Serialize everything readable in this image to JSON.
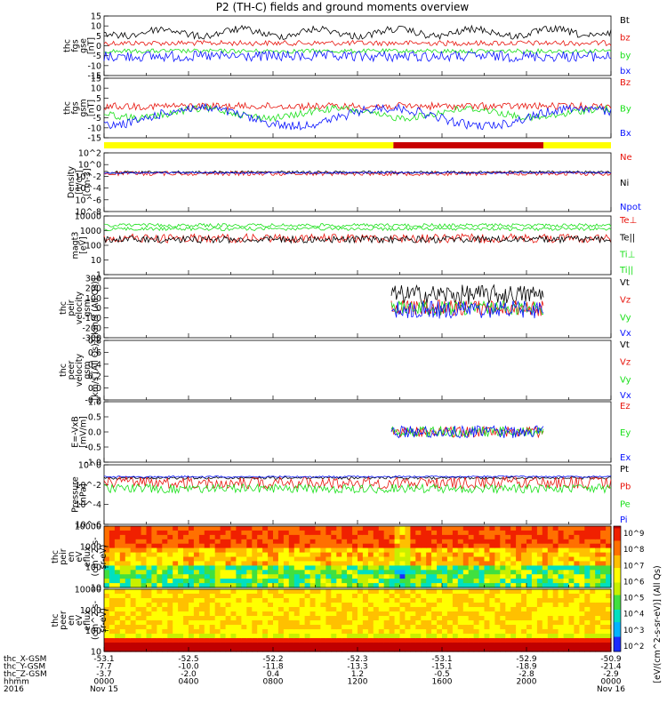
{
  "title": "P2 (TH-C) fields and ground moments overview",
  "colors": {
    "black": "#000000",
    "red": "#e8140c",
    "green": "#18e018",
    "blue": "#0a14ff",
    "yellow": "#ffff00",
    "darkred": "#c80000"
  },
  "chart_data": [
    {
      "type": "line",
      "name": "fgs",
      "ylabel": [
        "thc",
        "fgs",
        "gse",
        "[nT]"
      ],
      "yticks": [
        "15",
        "10",
        "5",
        "0",
        "-5",
        "-10",
        "-15"
      ],
      "ylim": [
        -15,
        15
      ],
      "series": [
        {
          "name": "Bt",
          "color": "black"
        },
        {
          "name": "bz",
          "color": "red"
        },
        {
          "name": "by",
          "color": "green"
        },
        {
          "name": "bx",
          "color": "blue"
        }
      ]
    },
    {
      "type": "line",
      "name": "fgs_gsm",
      "ylabel": [
        "thc",
        "fgs",
        "gsm",
        "[nT]"
      ],
      "yticks": [
        "15",
        "10",
        "5",
        "0",
        "-5",
        "-10",
        "-15"
      ],
      "ylim": [
        -15,
        15
      ],
      "series": [
        {
          "name": "Bz",
          "color": "red"
        },
        {
          "name": "By",
          "color": "green"
        },
        {
          "name": "Bx",
          "color": "blue"
        }
      ]
    },
    {
      "type": "bar",
      "name": "mode_bar",
      "segments": [
        {
          "from": 0,
          "to": 13.7,
          "color": "yellow"
        },
        {
          "from": 13.7,
          "to": 20.8,
          "color": "darkred"
        },
        {
          "from": 20.8,
          "to": 24,
          "color": "yellow"
        }
      ]
    },
    {
      "type": "line",
      "name": "density",
      "ylabel": [
        "Density",
        "[1/cc]",
        "[cm-3]"
      ],
      "yticks": [
        "10^2",
        "10^0",
        "10^-2",
        "10^-4",
        "10^-6",
        "10^-8"
      ],
      "log": true,
      "series": [
        {
          "name": "Ne",
          "color": "red"
        },
        {
          "name": "Ni",
          "color": "black"
        },
        {
          "name": "Npot",
          "color": "blue"
        }
      ]
    },
    {
      "type": "line",
      "name": "temperature",
      "ylabel": [
        "magt3",
        "[eV]"
      ],
      "yticks": [
        "10000",
        "1000",
        "100",
        "10",
        "1"
      ],
      "log": true,
      "series": [
        {
          "name": "Te⊥",
          "color": "red"
        },
        {
          "name": "Te||",
          "color": "black"
        },
        {
          "name": "Ti⊥",
          "color": "green"
        },
        {
          "name": "Ti||",
          "color": "green"
        }
      ]
    },
    {
      "type": "line",
      "name": "peir_velocity",
      "ylabel": [
        "thc",
        "peir",
        "velocity",
        "gsm",
        "[km/s (All Qs)]"
      ],
      "yticks": [
        "300",
        "200",
        "100",
        "0",
        "-100",
        "-200",
        "-300"
      ],
      "ylim": [
        -300,
        300
      ],
      "series": [
        {
          "name": "Vt",
          "color": "black"
        },
        {
          "name": "Vz",
          "color": "red"
        },
        {
          "name": "Vy",
          "color": "green"
        },
        {
          "name": "Vx",
          "color": "blue"
        }
      ]
    },
    {
      "type": "line",
      "name": "peer_velocity",
      "ylabel": [
        "thc",
        "peer",
        "velocity",
        "gsm",
        "[km/s (All Qs)]"
      ],
      "yticks": [
        "0.8",
        "0.6",
        "0.4",
        "0.2",
        "0.0",
        "-0.2"
      ],
      "ylim": [
        -0.2,
        0.8
      ],
      "series": [
        {
          "name": "Vt",
          "color": "black"
        },
        {
          "name": "Vz",
          "color": "red"
        },
        {
          "name": "Vy",
          "color": "green"
        },
        {
          "name": "Vx",
          "color": "blue"
        }
      ]
    },
    {
      "type": "line",
      "name": "efield",
      "ylabel": [
        "E=-VxB",
        "[mV/m]"
      ],
      "yticks": [
        "1.0",
        "0.5",
        "0.0",
        "-0.5",
        "-1.0"
      ],
      "ylim": [
        -1,
        1
      ],
      "series": [
        {
          "name": "Ez",
          "color": "red"
        },
        {
          "name": "Ey",
          "color": "green"
        },
        {
          "name": "Ex",
          "color": "blue"
        }
      ]
    },
    {
      "type": "line",
      "name": "pressure",
      "ylabel": [
        "Pressure",
        "[nPa]"
      ],
      "yticks": [
        "10^0",
        "10^-2",
        "10^-4",
        "10^-6"
      ],
      "log": true,
      "series": [
        {
          "name": "Pt",
          "color": "black"
        },
        {
          "name": "Pb",
          "color": "red"
        },
        {
          "name": "Pe",
          "color": "green"
        },
        {
          "name": "Pi",
          "color": "blue"
        }
      ]
    },
    {
      "type": "heatmap",
      "name": "peir_spectrogram",
      "ylabel": [
        "thc",
        "peir",
        "en",
        "eV",
        "eflux",
        "(cm^2-s-",
        "sr-eV)"
      ],
      "yticks": [
        "10000",
        "1000",
        "100",
        "10"
      ]
    },
    {
      "type": "heatmap",
      "name": "peer_spectrogram",
      "ylabel": [
        "thc",
        "peer",
        "en",
        "eV",
        "eflux",
        "(cm^2-s-",
        "sr-eV)"
      ],
      "yticks": [
        "10000",
        "1000",
        "100",
        "10"
      ]
    }
  ],
  "colorbar": {
    "label": "[eV/(cm^2-s-sr-eV)] (All Qs)",
    "ticks": [
      "10^9",
      "10^8",
      "10^7",
      "10^6",
      "10^5",
      "10^4",
      "10^3",
      "10^2"
    ]
  },
  "xaxis": {
    "rows": [
      {
        "label": "thc_X-GSM",
        "values": [
          "-53.1",
          "-52.5",
          "-52.2",
          "-52.3",
          "-53.1",
          "-52.9",
          "-50.9"
        ]
      },
      {
        "label": "thc_Y-GSM",
        "values": [
          "-7.7",
          "-10.0",
          "-11.8",
          "-13.3",
          "-15.1",
          "-18.9",
          "-21.4"
        ]
      },
      {
        "label": "thc_Z-GSM",
        "values": [
          "-3.7",
          "-2.0",
          "0.4",
          "1.2",
          "-0.5",
          "-2.8",
          "-2.9"
        ]
      },
      {
        "label": "hhmm",
        "values": [
          "0000",
          "0400",
          "0800",
          "1200",
          "1600",
          "2000",
          "0000"
        ]
      }
    ],
    "year": "2016",
    "date_start": "Nov 15",
    "date_end": "Nov 16"
  }
}
